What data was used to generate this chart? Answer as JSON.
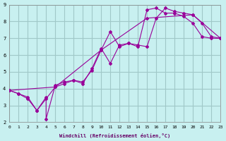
{
  "xlabel": "Windchill (Refroidissement éolien,°C)",
  "xlim": [
    0,
    23
  ],
  "ylim": [
    2,
    9
  ],
  "xticks": [
    0,
    1,
    2,
    3,
    4,
    5,
    6,
    7,
    8,
    9,
    10,
    11,
    12,
    13,
    14,
    15,
    16,
    17,
    18,
    19,
    20,
    21,
    22,
    23
  ],
  "yticks": [
    2,
    3,
    4,
    5,
    6,
    7,
    8,
    9
  ],
  "bg_color": "#c8f0f0",
  "grid_color": "#a0c8c8",
  "line_color": "#990099",
  "series1_x": [
    0,
    1,
    2,
    3,
    4,
    4,
    5,
    6,
    7,
    8,
    9,
    10,
    11,
    12,
    13,
    14,
    15,
    16,
    17,
    18,
    19,
    20,
    21,
    22,
    23
  ],
  "series1_y": [
    3.9,
    3.7,
    3.5,
    2.7,
    3.5,
    2.2,
    4.2,
    4.4,
    4.5,
    4.3,
    5.2,
    6.4,
    5.5,
    6.6,
    6.7,
    6.5,
    8.7,
    8.8,
    8.5,
    8.5,
    8.3,
    7.9,
    7.1,
    7.0,
    7.0
  ],
  "series2_x": [
    0,
    1,
    2,
    3,
    4,
    5,
    6,
    7,
    8,
    9,
    10,
    11,
    12,
    13,
    14,
    15,
    16,
    17,
    18,
    19,
    20,
    21,
    22,
    23
  ],
  "series2_y": [
    3.9,
    3.7,
    3.4,
    2.7,
    3.4,
    4.1,
    4.3,
    4.5,
    4.4,
    5.1,
    6.3,
    7.4,
    6.5,
    6.7,
    6.6,
    6.5,
    8.2,
    8.8,
    8.6,
    8.5,
    8.4,
    7.9,
    7.1,
    7.0
  ],
  "series3_x": [
    0,
    5,
    10,
    15,
    20,
    23
  ],
  "series3_y": [
    3.9,
    4.1,
    6.3,
    8.2,
    8.4,
    7.0
  ]
}
